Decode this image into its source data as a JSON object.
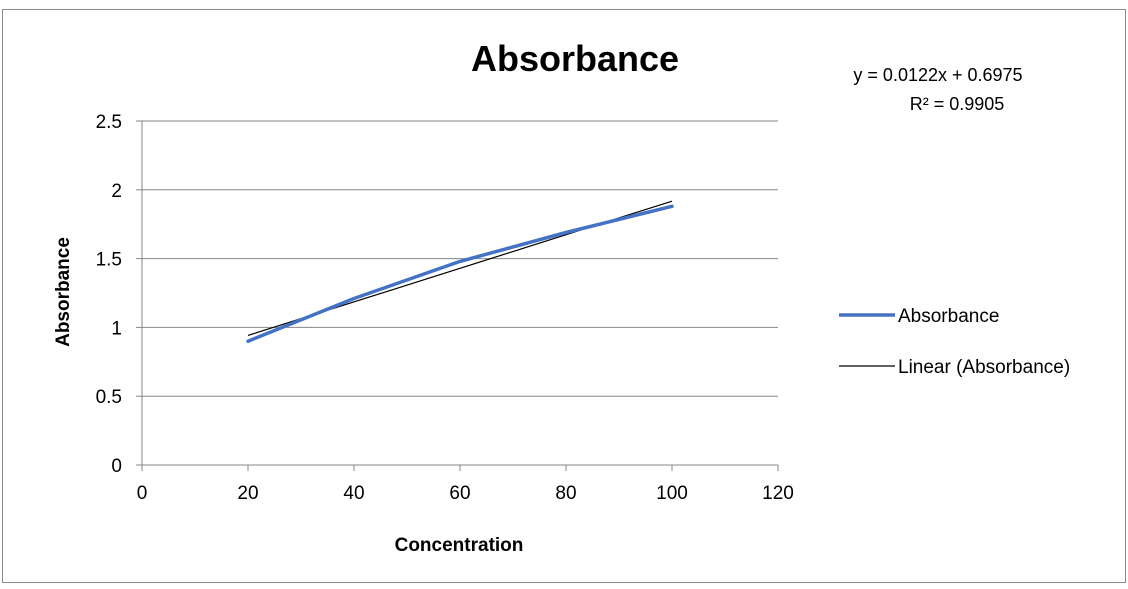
{
  "chart_data": {
    "type": "line",
    "title": "Absorbance",
    "xlabel": "Concentration",
    "ylabel": "Absorbance",
    "xlim": [
      0,
      120
    ],
    "ylim": [
      0,
      2.5
    ],
    "x_ticks": [
      "0",
      "20",
      "40",
      "60",
      "80",
      "100",
      "120"
    ],
    "y_ticks": [
      "0",
      "0.5",
      "1",
      "1.5",
      "2",
      "2.5"
    ],
    "grid": "horizontal",
    "legend_position": "right",
    "series": [
      {
        "name": "Absorbance",
        "x": [
          20,
          40,
          60,
          80,
          100
        ],
        "y": [
          0.9,
          1.21,
          1.48,
          1.69,
          1.88
        ],
        "color": "#4472c4"
      }
    ],
    "trendline": {
      "name": "Linear (Absorbance)",
      "slope": 0.0122,
      "intercept": 0.6975,
      "x_range": [
        20,
        100
      ],
      "color": "#000000",
      "equation": "y = 0.0122x + 0.6975",
      "r_squared": "R² = 0.9905"
    }
  }
}
